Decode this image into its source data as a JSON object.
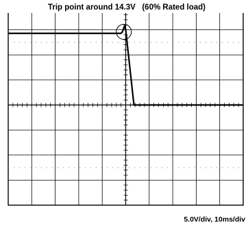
{
  "chart_data": {
    "type": "line",
    "title": "Trip point around 14.3V   (60% Rated load)",
    "scale_label": "5.0V/div, 10ms/div",
    "units": {
      "x": "ms",
      "y": "V"
    },
    "grid": {
      "x_divisions": 10,
      "y_divisions": 8,
      "shown": true
    },
    "xlim": [
      0,
      100
    ],
    "ylim": [
      -20,
      20
    ],
    "series": [
      {
        "values_x": [
          0,
          48.0,
          48.6,
          49.5,
          50.0,
          53.5,
          100
        ],
        "values_y": [
          14.3,
          14.3,
          14.6,
          15.8,
          15.0,
          0.0,
          0.0
        ]
      }
    ],
    "annotations": [
      {
        "type": "circle",
        "label": "trip-point",
        "x": 49.2,
        "y": 14.6
      }
    ],
    "colors": {
      "background": "#ffffff",
      "grid": "#000000",
      "trace": "#000000"
    }
  }
}
